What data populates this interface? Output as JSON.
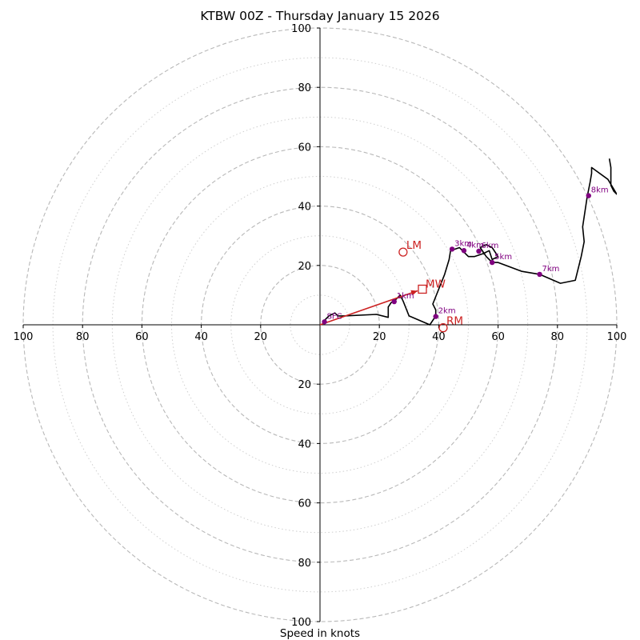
{
  "chart_data": {
    "type": "hodograph",
    "title": "KTBW 00Z - Thursday January 15 2026",
    "xlabel": "Speed in knots",
    "max_speed": 100,
    "ring_major": [
      20,
      40,
      60,
      80,
      100
    ],
    "ring_minor": [
      10,
      30,
      50,
      70,
      90
    ],
    "x_ticks": [
      {
        "v": -100,
        "label": "100"
      },
      {
        "v": -80,
        "label": "80"
      },
      {
        "v": -60,
        "label": "60"
      },
      {
        "v": -40,
        "label": "40"
      },
      {
        "v": -20,
        "label": "20"
      },
      {
        "v": 20,
        "label": "20"
      },
      {
        "v": 40,
        "label": "40"
      },
      {
        "v": 60,
        "label": "60"
      },
      {
        "v": 80,
        "label": "80"
      },
      {
        "v": 100,
        "label": "100"
      }
    ],
    "y_ticks": [
      {
        "v": 100,
        "label": "100"
      },
      {
        "v": 80,
        "label": "80"
      },
      {
        "v": 60,
        "label": "60"
      },
      {
        "v": 40,
        "label": "40"
      },
      {
        "v": 20,
        "label": "20"
      },
      {
        "v": -20,
        "label": "20"
      },
      {
        "v": -40,
        "label": "40"
      },
      {
        "v": -60,
        "label": "60"
      },
      {
        "v": -80,
        "label": "80"
      },
      {
        "v": -100,
        "label": "100"
      }
    ],
    "profile": [
      [
        1,
        1
      ],
      [
        3,
        3
      ],
      [
        5,
        4
      ],
      [
        6,
        3
      ],
      [
        8,
        3
      ],
      [
        19,
        3.5
      ],
      [
        23,
        2.5
      ],
      [
        23,
        6
      ],
      [
        24,
        7.5
      ],
      [
        25,
        8
      ],
      [
        27,
        10
      ],
      [
        28,
        8
      ],
      [
        30,
        3
      ],
      [
        37,
        0
      ],
      [
        39,
        3
      ],
      [
        39,
        5
      ],
      [
        38,
        7
      ],
      [
        40,
        12
      ],
      [
        42,
        17
      ],
      [
        43.5,
        22
      ],
      [
        44,
        25
      ],
      [
        47,
        26
      ],
      [
        48,
        25
      ],
      [
        50,
        23
      ],
      [
        52,
        23
      ],
      [
        55,
        24
      ],
      [
        57,
        25
      ],
      [
        58,
        22
      ],
      [
        60,
        23
      ],
      [
        58,
        26
      ],
      [
        56,
        27
      ],
      [
        54,
        26
      ],
      [
        56,
        23
      ],
      [
        58,
        21
      ],
      [
        60,
        21
      ],
      [
        68,
        18
      ],
      [
        74,
        17
      ],
      [
        81,
        14
      ],
      [
        86,
        15
      ],
      [
        88,
        23
      ],
      [
        89,
        28
      ],
      [
        88.5,
        33
      ],
      [
        90,
        43
      ],
      [
        91,
        48
      ],
      [
        91.5,
        51
      ],
      [
        91.5,
        53
      ],
      [
        97,
        49
      ],
      [
        100,
        44
      ],
      [
        99,
        45
      ],
      [
        98,
        47
      ],
      [
        98,
        53
      ],
      [
        97.5,
        56
      ]
    ],
    "height_markers": [
      {
        "label": "SFC",
        "u": 1.5,
        "v": 1
      },
      {
        "label": "1km",
        "u": 25,
        "v": 7.8
      },
      {
        "label": "2km",
        "u": 39,
        "v": 2.8
      },
      {
        "label": "3km",
        "u": 44.5,
        "v": 25.5
      },
      {
        "label": "4km",
        "u": 48.5,
        "v": 25
      },
      {
        "label": "6km",
        "u": 53.5,
        "v": 24.8
      },
      {
        "label": "5km",
        "u": 58,
        "v": 21
      },
      {
        "label": "7km",
        "u": 74,
        "v": 17
      },
      {
        "label": "8km",
        "u": 90.5,
        "v": 43.5
      }
    ],
    "mean_wind": {
      "label": "MW",
      "u": 34.5,
      "v": 12
    },
    "left_mover": {
      "label": "LM",
      "u": 28,
      "v": 24.5
    },
    "right_mover": {
      "label": "RM",
      "u": 41.5,
      "v": -1
    },
    "colors": {
      "profile": "#000000",
      "markers": "#800080",
      "storm_motion": "#cc2222",
      "grid": "#b8b8b8",
      "axes": "#000000"
    }
  }
}
